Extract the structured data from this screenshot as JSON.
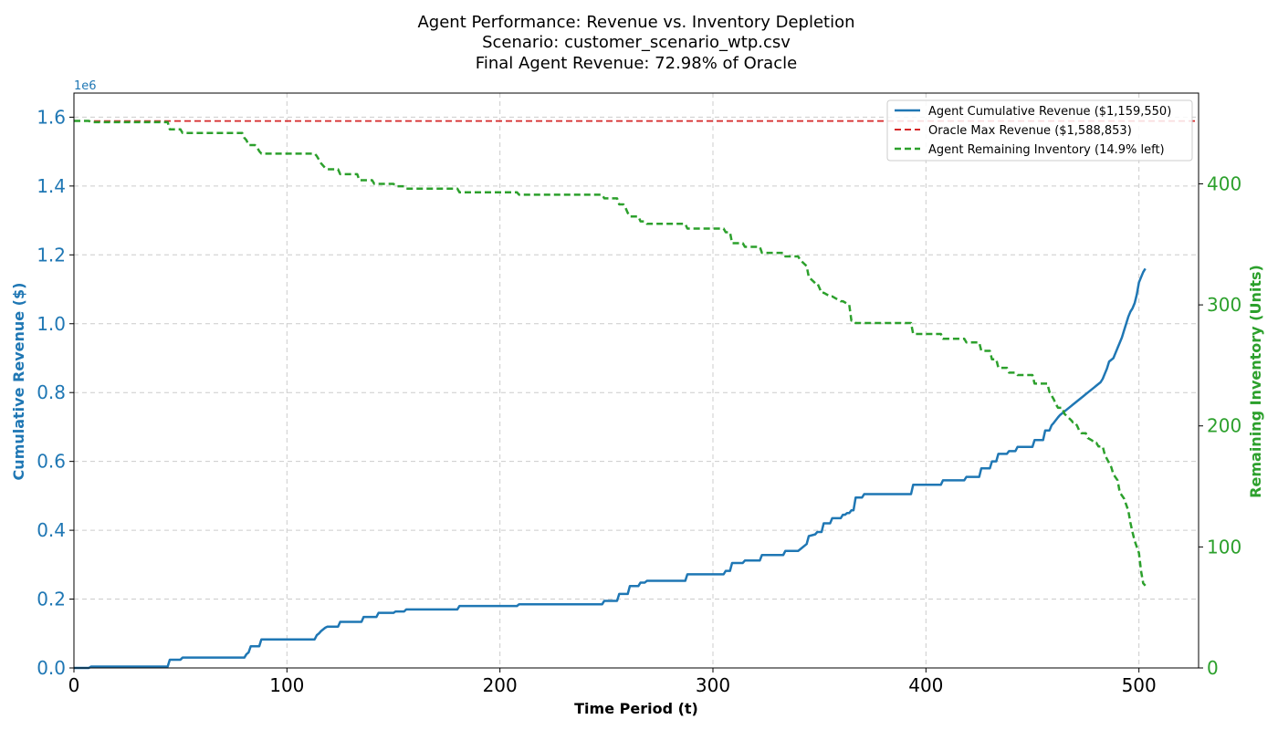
{
  "chart_data": {
    "type": "line",
    "title_lines": [
      "Agent Performance: Revenue vs. Inventory Depletion",
      "Scenario: customer_scenario_wtp.csv",
      "Final Agent Revenue: 72.98% of Oracle"
    ],
    "xlabel": "Time Period (t)",
    "ylabel_left": "Cumulative Revenue ($)",
    "ylabel_right": "Remaining Inventory (Units)",
    "y_left_offset_label": "1e6",
    "xlim": [
      0,
      528
    ],
    "ylim_left": [
      0,
      1.67
    ],
    "ylim_right": [
      0,
      475
    ],
    "x_ticks": [
      0,
      100,
      200,
      300,
      400,
      500
    ],
    "y_left_ticks": [
      "0.0",
      "0.2",
      "0.4",
      "0.6",
      "0.8",
      "1.0",
      "1.2",
      "1.4",
      "1.6"
    ],
    "y_right_ticks": [
      0,
      100,
      200,
      300,
      400
    ],
    "grid": true,
    "legend_position": "top-right",
    "colors": {
      "revenue": "#1f77b4",
      "oracle": "#d62728",
      "inventory": "#2ca02c",
      "grid": "#cccccc"
    },
    "series": [
      {
        "name": "Agent Cumulative Revenue ($1,159,550)",
        "axis": "left",
        "style": "solid",
        "x": [
          0,
          7,
          8,
          44,
          45,
          50,
          51,
          80,
          81,
          82,
          83,
          87,
          88,
          113,
          114,
          115,
          116,
          117,
          118,
          119,
          120,
          124,
          125,
          135,
          136,
          142,
          143,
          150,
          151,
          155,
          156,
          180,
          181,
          208,
          209,
          248,
          249,
          255,
          256,
          260,
          261,
          265,
          266,
          268,
          269,
          287,
          288,
          305,
          306,
          308,
          309,
          314,
          315,
          322,
          323,
          333,
          334,
          340,
          341,
          344,
          345,
          348,
          349,
          351,
          352,
          355,
          356,
          360,
          361,
          362,
          363,
          364,
          365,
          366,
          367,
          370,
          371,
          393,
          394,
          407,
          408,
          418,
          419,
          425,
          426,
          430,
          431,
          433,
          434,
          438,
          439,
          442,
          443,
          450,
          451,
          455,
          456,
          458,
          459,
          460,
          461,
          462,
          463,
          464,
          465,
          466,
          467,
          468,
          469,
          470,
          471,
          472,
          473,
          474,
          475,
          476,
          477,
          478,
          479,
          480,
          481,
          482,
          483,
          484,
          485,
          486,
          487,
          488,
          489,
          490,
          491,
          492,
          493,
          494,
          495,
          496,
          497,
          498,
          499,
          500,
          501,
          502,
          503
        ],
        "y": [
          0,
          0,
          0.004,
          0.004,
          0.024,
          0.024,
          0.03,
          0.03,
          0.04,
          0.045,
          0.063,
          0.063,
          0.083,
          0.083,
          0.095,
          0.1,
          0.107,
          0.112,
          0.117,
          0.12,
          0.12,
          0.12,
          0.134,
          0.134,
          0.148,
          0.148,
          0.16,
          0.16,
          0.164,
          0.164,
          0.17,
          0.17,
          0.18,
          0.18,
          0.185,
          0.185,
          0.195,
          0.195,
          0.215,
          0.215,
          0.238,
          0.238,
          0.248,
          0.248,
          0.253,
          0.253,
          0.272,
          0.272,
          0.282,
          0.282,
          0.305,
          0.305,
          0.312,
          0.312,
          0.328,
          0.328,
          0.34,
          0.34,
          0.345,
          0.36,
          0.383,
          0.388,
          0.395,
          0.395,
          0.42,
          0.42,
          0.435,
          0.435,
          0.445,
          0.445,
          0.45,
          0.45,
          0.458,
          0.458,
          0.495,
          0.495,
          0.505,
          0.505,
          0.532,
          0.532,
          0.545,
          0.545,
          0.555,
          0.555,
          0.58,
          0.58,
          0.6,
          0.6,
          0.622,
          0.622,
          0.63,
          0.63,
          0.642,
          0.642,
          0.662,
          0.662,
          0.69,
          0.69,
          0.705,
          0.712,
          0.72,
          0.728,
          0.735,
          0.74,
          0.745,
          0.75,
          0.755,
          0.76,
          0.765,
          0.77,
          0.775,
          0.78,
          0.785,
          0.79,
          0.795,
          0.8,
          0.805,
          0.81,
          0.815,
          0.82,
          0.825,
          0.83,
          0.84,
          0.855,
          0.87,
          0.89,
          0.895,
          0.9,
          0.915,
          0.93,
          0.945,
          0.96,
          0.98,
          1.0,
          1.02,
          1.035,
          1.045,
          1.06,
          1.085,
          1.12,
          1.135,
          1.15,
          1.16
        ]
      },
      {
        "name": "Oracle Max Revenue ($1,588,853)",
        "axis": "left",
        "style": "dashed",
        "x": [
          0,
          528
        ],
        "y": [
          1.588853,
          1.588853
        ]
      },
      {
        "name": "Agent Remaining Inventory (14.9% left)",
        "axis": "right",
        "style": "dashed",
        "x": [
          0,
          7,
          8,
          44,
          45,
          50,
          51,
          79,
          80,
          81,
          82,
          85,
          86,
          87,
          88,
          113,
          114,
          115,
          116,
          117,
          118,
          119,
          120,
          124,
          125,
          133,
          134,
          140,
          141,
          150,
          151,
          155,
          156,
          180,
          181,
          208,
          209,
          248,
          249,
          255,
          256,
          258,
          259,
          260,
          261,
          265,
          266,
          268,
          269,
          287,
          288,
          305,
          306,
          308,
          309,
          314,
          315,
          322,
          323,
          333,
          334,
          340,
          341,
          344,
          345,
          348,
          349,
          351,
          352,
          355,
          356,
          360,
          361,
          364,
          365,
          366,
          367,
          370,
          371,
          393,
          394,
          407,
          408,
          418,
          419,
          425,
          426,
          430,
          431,
          433,
          434,
          438,
          439,
          442,
          443,
          450,
          451,
          457,
          458,
          459,
          460,
          461,
          462,
          464,
          465,
          468,
          469,
          470,
          471,
          472,
          473,
          475,
          476,
          478,
          479,
          480,
          481,
          483,
          484,
          487,
          488,
          490,
          491,
          493,
          494,
          495,
          496,
          497,
          498,
          499,
          500,
          501,
          502,
          503
        ],
        "y": [
          452,
          452,
          451,
          451,
          445,
          445,
          442,
          442,
          438,
          436,
          432,
          432,
          430,
          427,
          425,
          425,
          423,
          420,
          417,
          415,
          413,
          412,
          412,
          412,
          408,
          408,
          403,
          403,
          400,
          400,
          398,
          398,
          396,
          396,
          393,
          393,
          391,
          391,
          388,
          388,
          383,
          383,
          380,
          376,
          373,
          373,
          369,
          369,
          367,
          367,
          363,
          363,
          360,
          360,
          351,
          351,
          348,
          348,
          343,
          343,
          340,
          340,
          337,
          332,
          323,
          318,
          318,
          310,
          310,
          307,
          307,
          303,
          303,
          300,
          287,
          287,
          285,
          285,
          285,
          285,
          276,
          276,
          272,
          272,
          269,
          269,
          262,
          262,
          255,
          255,
          248,
          248,
          244,
          244,
          242,
          242,
          235,
          235,
          228,
          225,
          222,
          218,
          215,
          215,
          210,
          205,
          203,
          203,
          200,
          196,
          194,
          194,
          190,
          188,
          186,
          186,
          183,
          183,
          176,
          166,
          160,
          155,
          145,
          140,
          135,
          130,
          120,
          112,
          105,
          100,
          95,
          80,
          70,
          68
        ]
      }
    ]
  }
}
